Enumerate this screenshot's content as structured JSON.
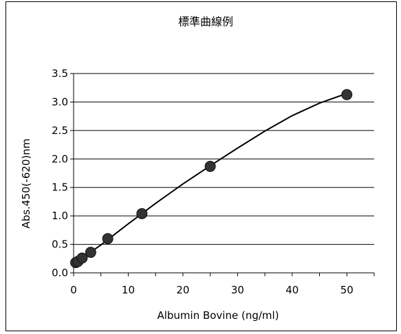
{
  "chart_data": {
    "type": "scatter",
    "title": "標準曲線例",
    "xlabel": "Albumin Bovine (ng/ml)",
    "ylabel": "Abs.450(-620)nm",
    "xlim": [
      0,
      55
    ],
    "ylim": [
      0,
      3.5
    ],
    "x_ticks": [
      "0",
      "10",
      "20",
      "30",
      "40",
      "50"
    ],
    "y_ticks": [
      "0.0",
      "0.5",
      "1.0",
      "1.5",
      "2.0",
      "2.5",
      "3.0",
      "3.5"
    ],
    "grid": "horizontal",
    "marker_color": "#333333",
    "series": [
      {
        "x": [
          0.39,
          0.78,
          1.56,
          3.13,
          6.25,
          12.5,
          25,
          50
        ],
        "values": [
          0.18,
          0.2,
          0.26,
          0.36,
          0.6,
          1.04,
          1.87,
          3.13
        ]
      }
    ],
    "fit_curve": {
      "x": [
        0,
        2,
        5,
        10,
        15,
        20,
        25,
        30,
        35,
        40,
        45,
        50
      ],
      "values": [
        0.16,
        0.29,
        0.49,
        0.86,
        1.22,
        1.56,
        1.88,
        2.19,
        2.49,
        2.76,
        2.98,
        3.15
      ]
    }
  }
}
